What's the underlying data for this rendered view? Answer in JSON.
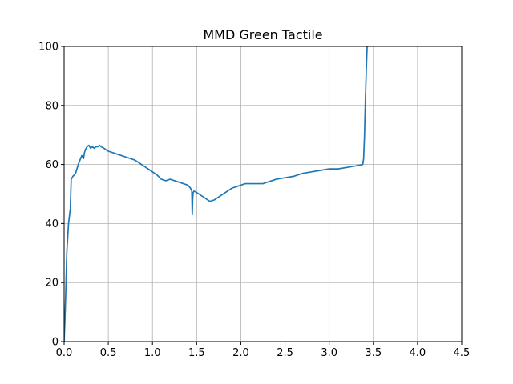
{
  "chart_data": {
    "type": "line",
    "title": "MMD Green Tactile",
    "xlabel": "",
    "ylabel": "",
    "xlim": [
      0,
      4.5
    ],
    "ylim": [
      0,
      100
    ],
    "xticks": [
      0.0,
      0.5,
      1.0,
      1.5,
      2.0,
      2.5,
      3.0,
      3.5,
      4.0,
      4.5
    ],
    "xtick_labels": [
      "0.0",
      "0.5",
      "1.0",
      "1.5",
      "2.0",
      "2.5",
      "3.0",
      "3.5",
      "4.0",
      "4.5"
    ],
    "yticks": [
      0,
      20,
      40,
      60,
      80,
      100
    ],
    "ytick_labels": [
      "0",
      "20",
      "40",
      "60",
      "80",
      "100"
    ],
    "grid": true,
    "colors": {
      "series": "#1f77b4",
      "grid": "#b0b0b0"
    },
    "series": [
      {
        "x": [
          0.0,
          0.01,
          0.02,
          0.03,
          0.05,
          0.07,
          0.08,
          0.1,
          0.13,
          0.16,
          0.2,
          0.22,
          0.23,
          0.24,
          0.26,
          0.28,
          0.3,
          0.32,
          0.34,
          0.36,
          0.38,
          0.4,
          0.42,
          0.45,
          0.5,
          0.55,
          0.6,
          0.65,
          0.7,
          0.75,
          0.8,
          0.85,
          0.9,
          0.95,
          1.0,
          1.05,
          1.1,
          1.15,
          1.2,
          1.25,
          1.3,
          1.35,
          1.4,
          1.43,
          1.445,
          1.45,
          1.455,
          1.46,
          1.47,
          1.5,
          1.55,
          1.6,
          1.65,
          1.7,
          1.75,
          1.8,
          1.85,
          1.9,
          1.95,
          2.0,
          2.05,
          2.1,
          2.15,
          2.2,
          2.25,
          2.3,
          2.35,
          2.4,
          2.5,
          2.6,
          2.7,
          2.8,
          2.9,
          3.0,
          3.1,
          3.2,
          3.3,
          3.38,
          3.39,
          3.4,
          3.41,
          3.42,
          3.43,
          3.44
        ],
        "values": [
          0,
          8,
          18,
          30,
          40,
          45,
          55,
          56,
          57,
          60,
          63,
          62,
          64,
          65,
          66,
          66.5,
          65.5,
          66,
          65.5,
          66,
          66,
          66.5,
          66,
          65.5,
          64.5,
          64,
          63.5,
          63,
          62.5,
          62,
          61.5,
          60.5,
          59.5,
          58.5,
          57.5,
          56.5,
          55,
          54.5,
          55,
          54.5,
          54,
          53.5,
          53,
          52,
          51,
          43,
          48,
          50.5,
          51,
          50.5,
          49.5,
          48.5,
          47.5,
          48,
          49,
          50,
          51,
          52,
          52.5,
          53,
          53.5,
          53.5,
          53.5,
          53.5,
          53.5,
          54,
          54.5,
          55,
          55.5,
          56,
          57,
          57.5,
          58,
          58.5,
          58.5,
          59,
          59.5,
          60,
          62,
          70,
          82,
          92,
          100,
          100
        ]
      }
    ]
  }
}
